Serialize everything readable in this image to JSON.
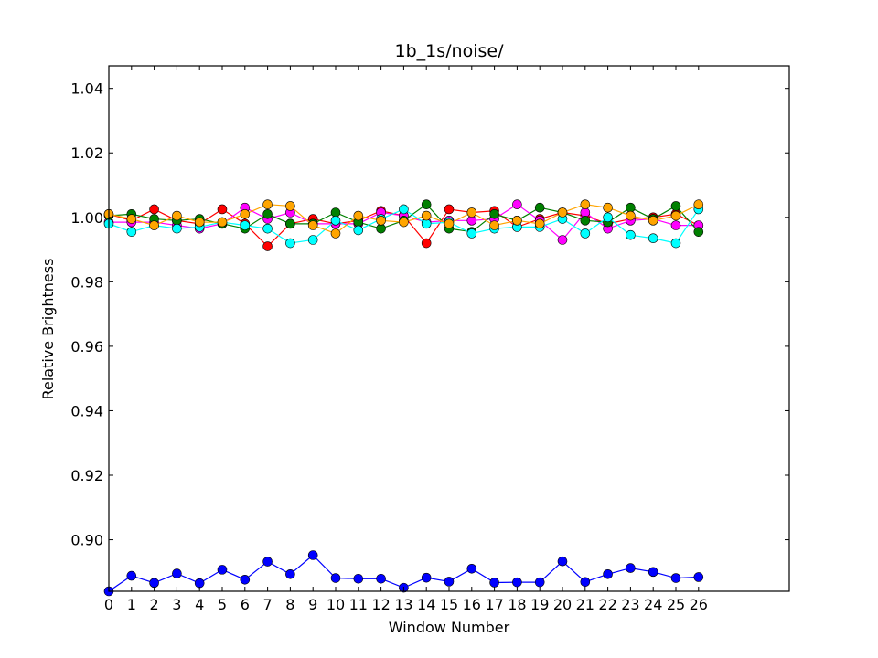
{
  "chart_data": {
    "type": "line",
    "title": "1b_1s/noise/",
    "xlabel": "Window Number",
    "ylabel": "Relative Brightness",
    "xlim": [
      0,
      30
    ],
    "ylim": [
      0.884,
      1.047
    ],
    "xticks": [
      0,
      1,
      2,
      3,
      4,
      5,
      6,
      7,
      8,
      9,
      10,
      11,
      12,
      13,
      14,
      15,
      16,
      17,
      18,
      19,
      20,
      21,
      22,
      23,
      24,
      25,
      26
    ],
    "yticks": [
      0.9,
      0.92,
      0.94,
      0.96,
      0.98,
      1.0,
      1.02,
      1.04
    ],
    "ytick_labels": [
      "0.90",
      "0.92",
      "0.94",
      "0.96",
      "0.98",
      "1.00",
      "1.02",
      "1.04"
    ],
    "grid": false,
    "x": [
      0,
      1,
      2,
      3,
      4,
      5,
      6,
      7,
      8,
      9,
      10,
      11,
      12,
      13,
      14,
      15,
      16,
      17,
      18,
      19,
      20,
      21,
      22,
      23,
      24,
      25,
      26
    ],
    "series": [
      {
        "color": "#0000ff",
        "values": [
          0.884,
          0.8888,
          0.8866,
          0.8895,
          0.8865,
          0.8907,
          0.8876,
          0.8932,
          0.8893,
          0.8952,
          0.8881,
          0.8879,
          0.8879,
          0.8851,
          0.8882,
          0.887,
          0.891,
          0.8867,
          0.8868,
          0.8868,
          0.8933,
          0.8869,
          0.8893,
          0.8912,
          0.89,
          0.8881,
          0.8884
        ]
      },
      {
        "color": "#ff0000",
        "values": [
          1.001,
          0.999,
          1.0025,
          0.999,
          0.998,
          1.0025,
          0.998,
          0.991,
          0.998,
          0.9995,
          0.998,
          0.999,
          1.002,
          1.0005,
          0.992,
          1.0025,
          1.0015,
          1.002,
          0.997,
          0.9995,
          1.0015,
          1.0005,
          0.998,
          0.9995,
          1.0,
          1.001,
          0.9975
        ]
      },
      {
        "color": "#ff00ff",
        "values": [
          0.9985,
          0.9985,
          0.9985,
          0.9975,
          0.9965,
          0.998,
          1.003,
          0.9995,
          1.0015,
          0.998,
          0.998,
          0.998,
          1.0015,
          1.0005,
          0.9985,
          0.999,
          0.999,
          0.9995,
          1.004,
          0.999,
          0.993,
          1.0015,
          0.9965,
          0.999,
          0.9995,
          0.9975,
          0.9975
        ]
      },
      {
        "color": "#008000",
        "values": [
          1.0005,
          1.001,
          0.9995,
          0.999,
          0.9995,
          0.998,
          0.9965,
          1.001,
          0.998,
          0.998,
          1.0015,
          0.9985,
          0.9965,
          0.999,
          1.004,
          0.9965,
          0.9955,
          1.001,
          0.999,
          1.003,
          1.0015,
          0.999,
          0.9985,
          1.003,
          0.9995,
          1.0035,
          0.9955
        ]
      },
      {
        "color": "#00ffff",
        "values": [
          0.998,
          0.9955,
          0.9975,
          0.9965,
          0.997,
          0.9985,
          0.9975,
          0.9965,
          0.992,
          0.993,
          0.999,
          0.996,
          0.9995,
          1.0025,
          0.998,
          0.9985,
          0.995,
          0.9965,
          0.997,
          0.997,
          0.9995,
          0.995,
          1.0,
          0.9945,
          0.9935,
          0.992,
          1.0025
        ]
      },
      {
        "color": "#ffa500",
        "values": [
          1.001,
          0.9995,
          0.9975,
          1.0005,
          0.9985,
          0.9985,
          1.001,
          1.004,
          1.0035,
          0.9975,
          0.995,
          1.0005,
          0.999,
          0.9985,
          1.0005,
          0.998,
          1.0015,
          0.9975,
          0.999,
          0.998,
          1.0015,
          1.004,
          1.003,
          1.0005,
          0.999,
          1.0005,
          1.004
        ]
      }
    ]
  }
}
